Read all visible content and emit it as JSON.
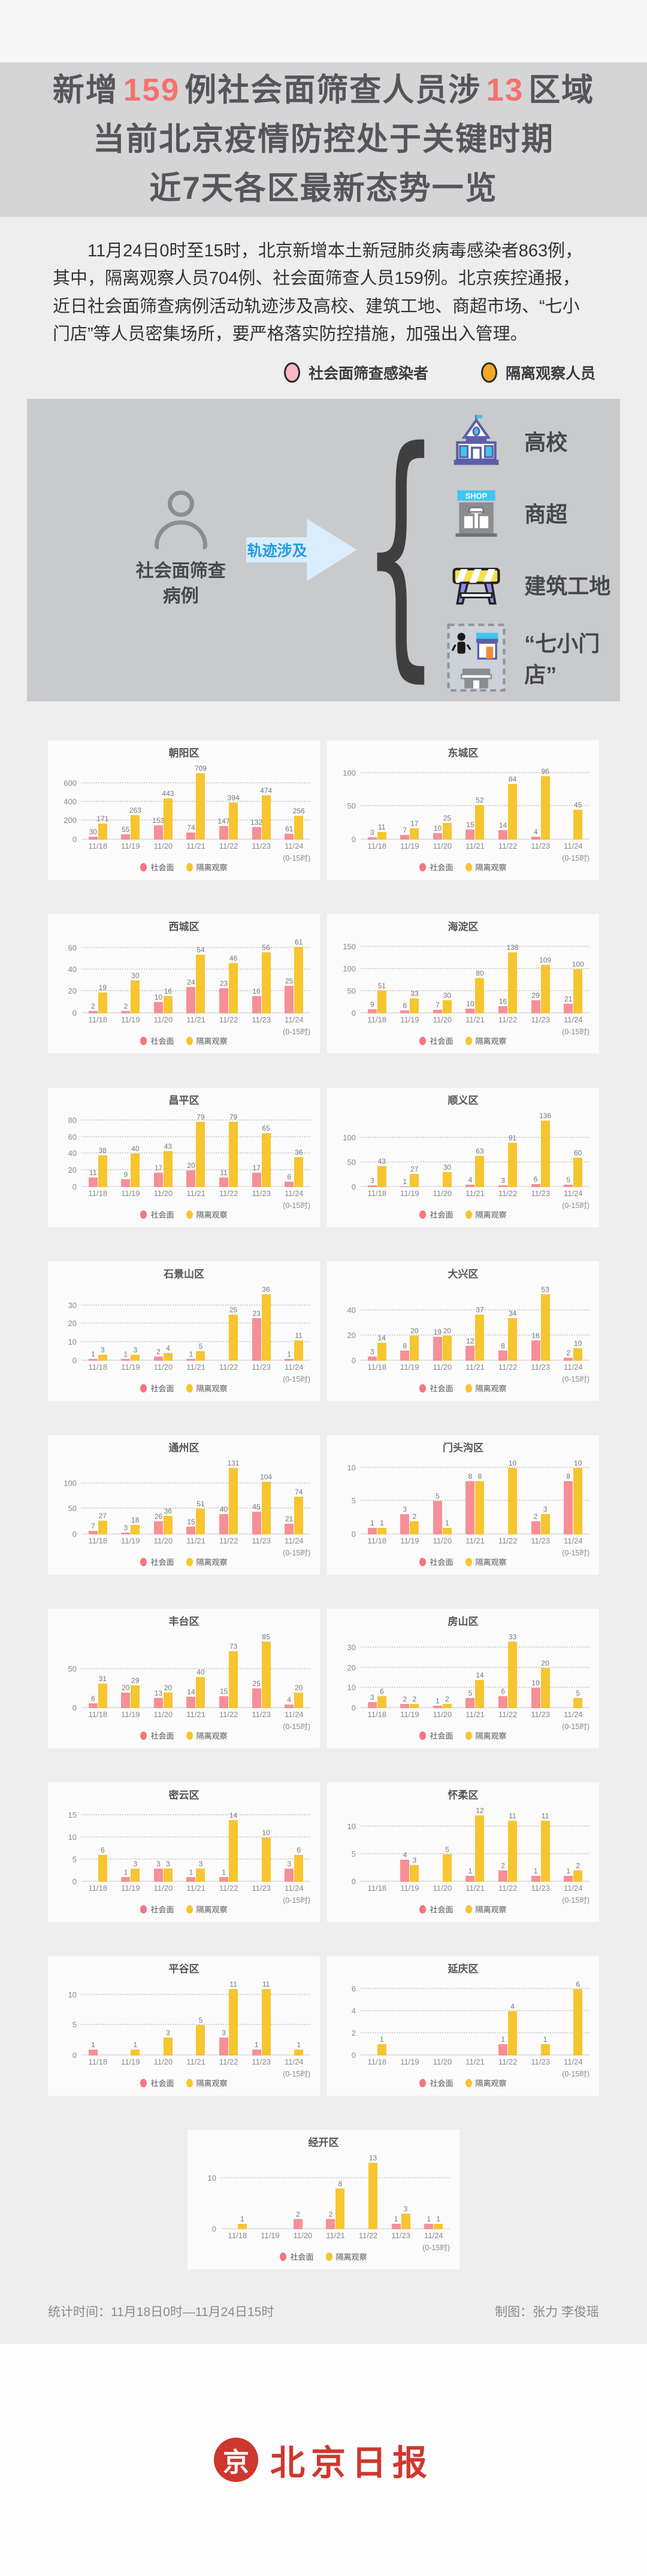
{
  "header": {
    "l1a": "新增",
    "l1n1": "159",
    "l1b": "例社会面筛查人员涉",
    "l1n2": "13",
    "l1c": "区域",
    "line2": "当前北京疫情防控处于关键时期",
    "line3": "近7天各区最新态势一览"
  },
  "intro": {
    "text": "11月24日0时至15时，北京新增本土新冠肺炎病毒感染者863例，其中，隔离观察人员704例、社会面筛查人员159例。北京疾控通报，近日社会面筛查病例活动轨迹涉及高校、建筑工地、商超市场、“七小门店”等人员密集场所，要严格落实防控措施，加强出入管理。"
  },
  "top_legend": {
    "social_label": "社会面筛查感染者",
    "quarantine_label": "隔离观察人员",
    "social_color": "#f9b7c2",
    "quarantine_color": "#f5a728"
  },
  "diagram": {
    "source_label_line1": "社会面筛查",
    "source_label_line2": "病例",
    "arrow_label": "轨迹涉及",
    "targets": [
      {
        "icon": "school-icon",
        "label": "高校"
      },
      {
        "icon": "shop-icon",
        "label": "商超"
      },
      {
        "icon": "construction-icon",
        "label": "建筑工地"
      },
      {
        "icon": "small-shops-icon",
        "label": "“七小门店”"
      }
    ],
    "shop_sign_text": "SHOP"
  },
  "chart_data": {
    "type": "bar",
    "x": [
      "11/18",
      "11/19",
      "11/20",
      "11/21",
      "11/22",
      "11/23",
      "11/24"
    ],
    "x_note": "(0-15时)",
    "legend": [
      "社会面",
      "隔离观察"
    ],
    "legend_position": "bottom",
    "grid": true,
    "colors": {
      "social": "#f78f96",
      "quarantine": "#f6c52f"
    },
    "charts": [
      {
        "name": "朝阳区",
        "ticks": [
          0,
          200,
          400,
          600
        ],
        "series": [
          {
            "name": "社会面",
            "values": [
              30,
              55,
              153,
              74,
              147,
              132,
              61
            ]
          },
          {
            "name": "隔离观察",
            "values": [
              171,
              263,
              443,
              709,
              394,
              474,
              256
            ]
          }
        ]
      },
      {
        "name": "东城区",
        "ticks": [
          0,
          50,
          100
        ],
        "series": [
          {
            "name": "社会面",
            "values": [
              3,
              7,
              10,
              15,
              14,
              4,
              0
            ]
          },
          {
            "name": "隔离观察",
            "values": [
              11,
              17,
              25,
              52,
              84,
              96,
              45
            ]
          }
        ]
      },
      {
        "name": "西城区",
        "ticks": [
          0,
          20,
          40,
          60
        ],
        "series": [
          {
            "name": "社会面",
            "values": [
              2,
              2,
              10,
              24,
              23,
              16,
              25
            ]
          },
          {
            "name": "隔离观察",
            "values": [
              19,
              30,
              16,
              54,
              46,
              56,
              61
            ]
          }
        ]
      },
      {
        "name": "海淀区",
        "ticks": [
          0,
          50,
          100,
          150
        ],
        "series": [
          {
            "name": "社会面",
            "values": [
              9,
              6,
              7,
              10,
              16,
              29,
              21
            ]
          },
          {
            "name": "隔离观察",
            "values": [
              51,
              33,
              30,
              80,
              138,
              109,
              100
            ]
          }
        ]
      },
      {
        "name": "昌平区",
        "ticks": [
          0,
          20,
          40,
          60,
          80
        ],
        "series": [
          {
            "name": "社会面",
            "values": [
              11,
              9,
              17,
              20,
              11,
              17,
              6
            ]
          },
          {
            "name": "隔离观察",
            "values": [
              38,
              40,
              43,
              79,
              79,
              65,
              36
            ]
          }
        ]
      },
      {
        "name": "顺义区",
        "ticks": [
          0,
          50,
          100
        ],
        "series": [
          {
            "name": "社会面",
            "values": [
              3,
              1,
              0,
              4,
              3,
              6,
              5
            ]
          },
          {
            "name": "隔离观察",
            "values": [
              43,
              27,
              30,
              63,
              91,
              136,
              60
            ]
          }
        ]
      },
      {
        "name": "石景山区",
        "ticks": [
          0,
          10,
          20,
          30
        ],
        "series": [
          {
            "name": "社会面",
            "values": [
              1,
              1,
              2,
              1,
              0,
              23,
              1
            ]
          },
          {
            "name": "隔离观察",
            "values": [
              3,
              3,
              4,
              5,
              25,
              36,
              11
            ]
          }
        ]
      },
      {
        "name": "大兴区",
        "ticks": [
          0,
          20,
          40
        ],
        "series": [
          {
            "name": "社会面",
            "values": [
              3,
              8,
              19,
              12,
              8,
              16,
              2
            ]
          },
          {
            "name": "隔离观察",
            "values": [
              14,
              20,
              20,
              37,
              34,
              53,
              10
            ]
          }
        ]
      },
      {
        "name": "通州区",
        "ticks": [
          0,
          50,
          100
        ],
        "series": [
          {
            "name": "社会面",
            "values": [
              7,
              3,
              26,
              15,
              40,
              45,
              21
            ]
          },
          {
            "name": "隔离观察",
            "values": [
              27,
              18,
              36,
              51,
              131,
              104,
              74
            ]
          }
        ]
      },
      {
        "name": "门头沟区",
        "ticks": [
          0,
          5,
          10
        ],
        "series": [
          {
            "name": "社会面",
            "values": [
              1,
              3,
              5,
              8,
              0,
              2,
              8
            ]
          },
          {
            "name": "隔离观察",
            "values": [
              1,
              2,
              1,
              8,
              10,
              3,
              10
            ]
          }
        ]
      },
      {
        "name": "丰台区",
        "ticks": [
          0,
          50
        ],
        "series": [
          {
            "name": "社会面",
            "values": [
              6,
              20,
              13,
              14,
              15,
              25,
              4
            ]
          },
          {
            "name": "隔离观察",
            "values": [
              31,
              29,
              20,
              40,
              73,
              85,
              20
            ]
          }
        ]
      },
      {
        "name": "房山区",
        "ticks": [
          0,
          10,
          20,
          30
        ],
        "series": [
          {
            "name": "社会面",
            "values": [
              3,
              2,
              1,
              5,
              6,
              10,
              0
            ]
          },
          {
            "name": "隔离观察",
            "values": [
              6,
              2,
              2,
              14,
              33,
              20,
              5
            ]
          }
        ]
      },
      {
        "name": "密云区",
        "ticks": [
          0,
          5,
          10,
          15
        ],
        "series": [
          {
            "name": "社会面",
            "values": [
              0,
              1,
              3,
              1,
              1,
              0,
              3
            ]
          },
          {
            "name": "隔离观察",
            "values": [
              6,
              3,
              3,
              3,
              14,
              10,
              6
            ]
          }
        ]
      },
      {
        "name": "怀柔区",
        "ticks": [
          0,
          5,
          10
        ],
        "series": [
          {
            "name": "社会面",
            "values": [
              0,
              4,
              0,
              1,
              2,
              1,
              1
            ]
          },
          {
            "name": "隔离观察",
            "values": [
              0,
              3,
              5,
              12,
              11,
              11,
              2
            ]
          }
        ]
      },
      {
        "name": "平谷区",
        "ticks": [
          0,
          5,
          10
        ],
        "series": [
          {
            "name": "社会面",
            "values": [
              1,
              0,
              0,
              0,
              3,
              1,
              0
            ]
          },
          {
            "name": "隔离观察",
            "values": [
              0,
              1,
              3,
              5,
              11,
              11,
              1
            ]
          }
        ]
      },
      {
        "name": "延庆区",
        "ticks": [
          0,
          2,
          4,
          6
        ],
        "series": [
          {
            "name": "社会面",
            "values": [
              0,
              0,
              0,
              0,
              1,
              0,
              0
            ]
          },
          {
            "name": "隔离观察",
            "values": [
              1,
              0,
              0,
              0,
              4,
              1,
              6
            ]
          }
        ]
      },
      {
        "name": "经开区",
        "ticks": [
          0,
          10
        ],
        "series": [
          {
            "name": "社会面",
            "values": [
              0,
              0,
              2,
              2,
              0,
              1,
              1
            ]
          },
          {
            "name": "隔离观察",
            "values": [
              1,
              0,
              0,
              8,
              13,
              3,
              1
            ]
          }
        ]
      }
    ]
  },
  "footer": {
    "stat_time": "统计时间：11月18日0时—11月24日15时",
    "credit": "制图：张力 李俊瑶"
  },
  "logo": {
    "emblem_char": "京",
    "name": "北京日报",
    "color": "#ce372e"
  }
}
